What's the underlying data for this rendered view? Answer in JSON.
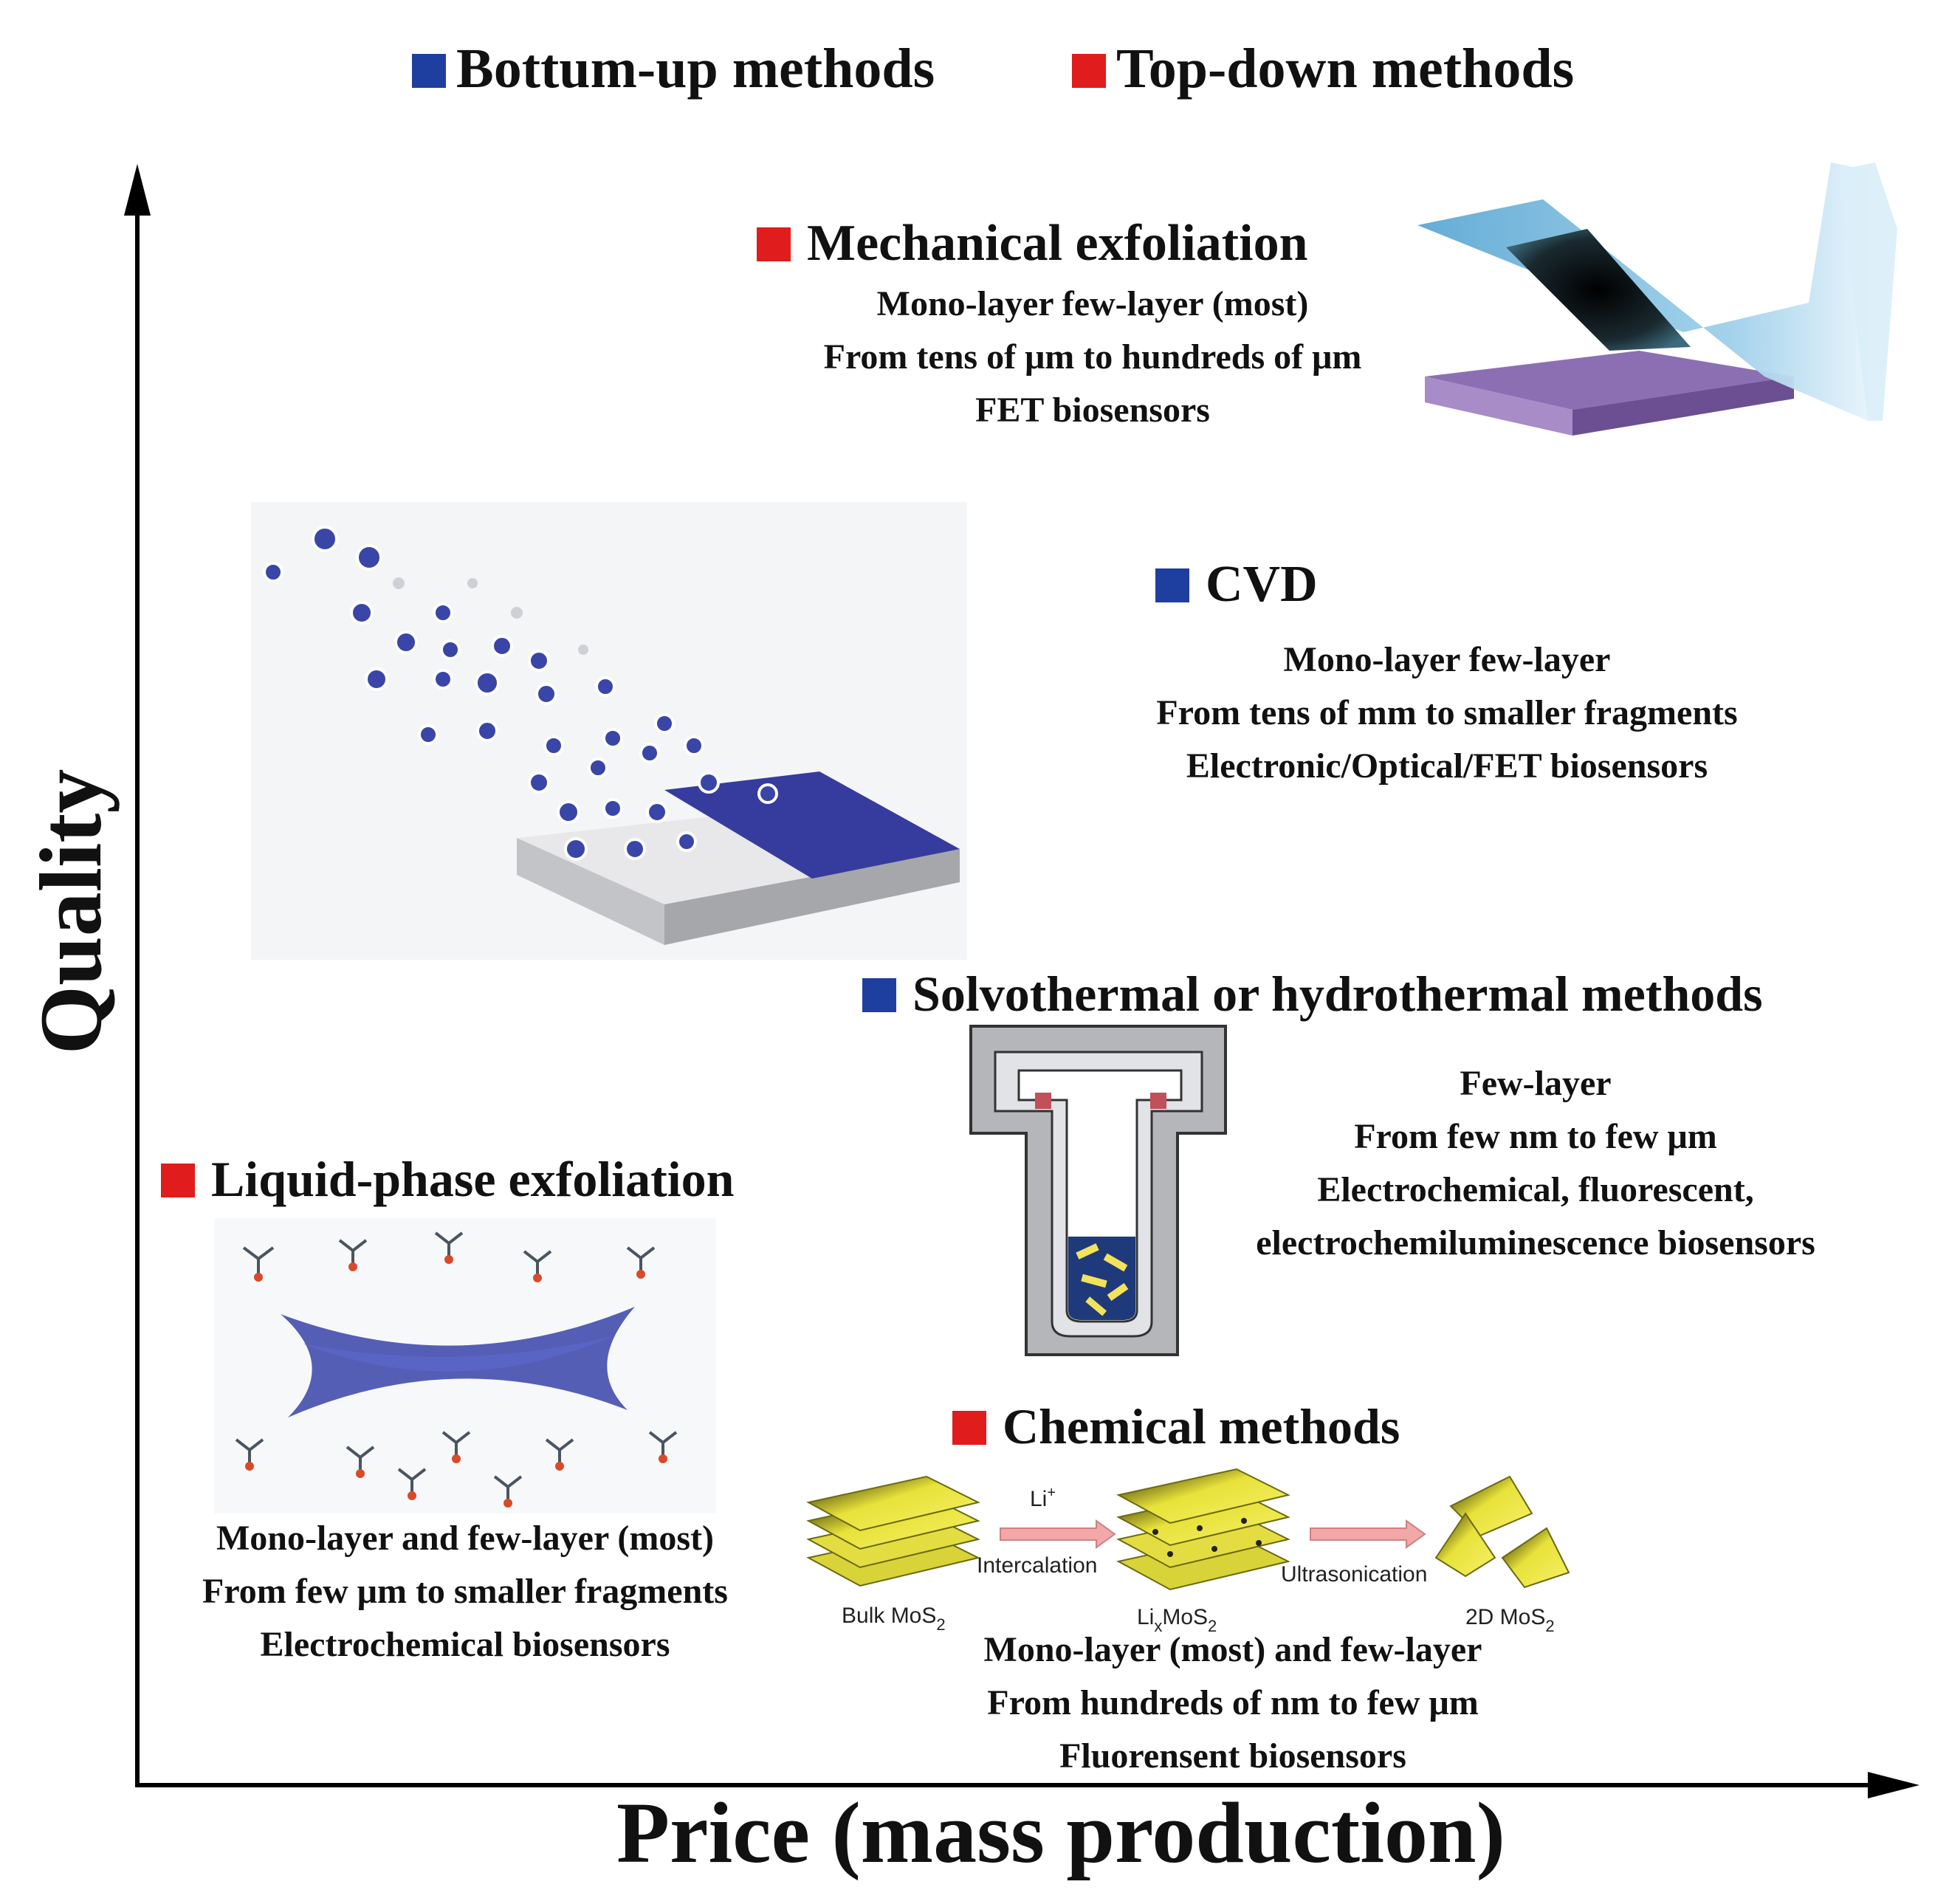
{
  "colors": {
    "bottom_up": "#1f3fa0",
    "top_down": "#e01c1c",
    "axis": "#000000"
  },
  "legend": [
    {
      "label": "Bottum-up methods",
      "type": "bottom_up"
    },
    {
      "label": "Top-down methods",
      "type": "top_down"
    }
  ],
  "axes": {
    "y_label": "Quality",
    "x_label": "Price (mass production)"
  },
  "methods": {
    "mechanical": {
      "title": "Mechanical exfoliation",
      "type": "top_down",
      "lines": [
        "Mono-layer few-layer (most)",
        "From  tens of μm to hundreds of μm",
        "FET biosensors"
      ]
    },
    "cvd": {
      "title": "CVD",
      "type": "bottom_up",
      "lines": [
        "Mono-layer few-layer",
        "From  tens of mm to smaller fragments",
        "Electronic/Optical/FET biosensors"
      ]
    },
    "solvothermal": {
      "title": "Solvothermal or hydrothermal methods",
      "type": "bottom_up",
      "lines": [
        "Few-layer",
        "From  few nm to few μm",
        "Electrochemical, fluorescent,",
        "electrochemiluminescence biosensors"
      ]
    },
    "liquid": {
      "title": "Liquid-phase exfoliation",
      "type": "top_down",
      "lines": [
        "Mono-layer and few-layer (most)",
        "From few μm to smaller fragments",
        "Electrochemical biosensors"
      ]
    },
    "chemical": {
      "title": "Chemical methods",
      "type": "top_down",
      "lines": [
        "Mono-layer (most) and few-layer",
        "From  hundreds of nm to few μm",
        "Fluorensent biosensors"
      ]
    }
  },
  "chemical_scheme": {
    "li": "Li",
    "li_sup": "+",
    "intercalation": "Intercalation",
    "ultrasonication": "Ultrasonication",
    "bulk": "Bulk MoS",
    "bulk_sub": "2",
    "lix": "Li",
    "lix_sub": "x",
    "lix_rest": "MoS",
    "lix_sub2": "2",
    "d2": "2D MoS",
    "d2_sub": "2"
  }
}
